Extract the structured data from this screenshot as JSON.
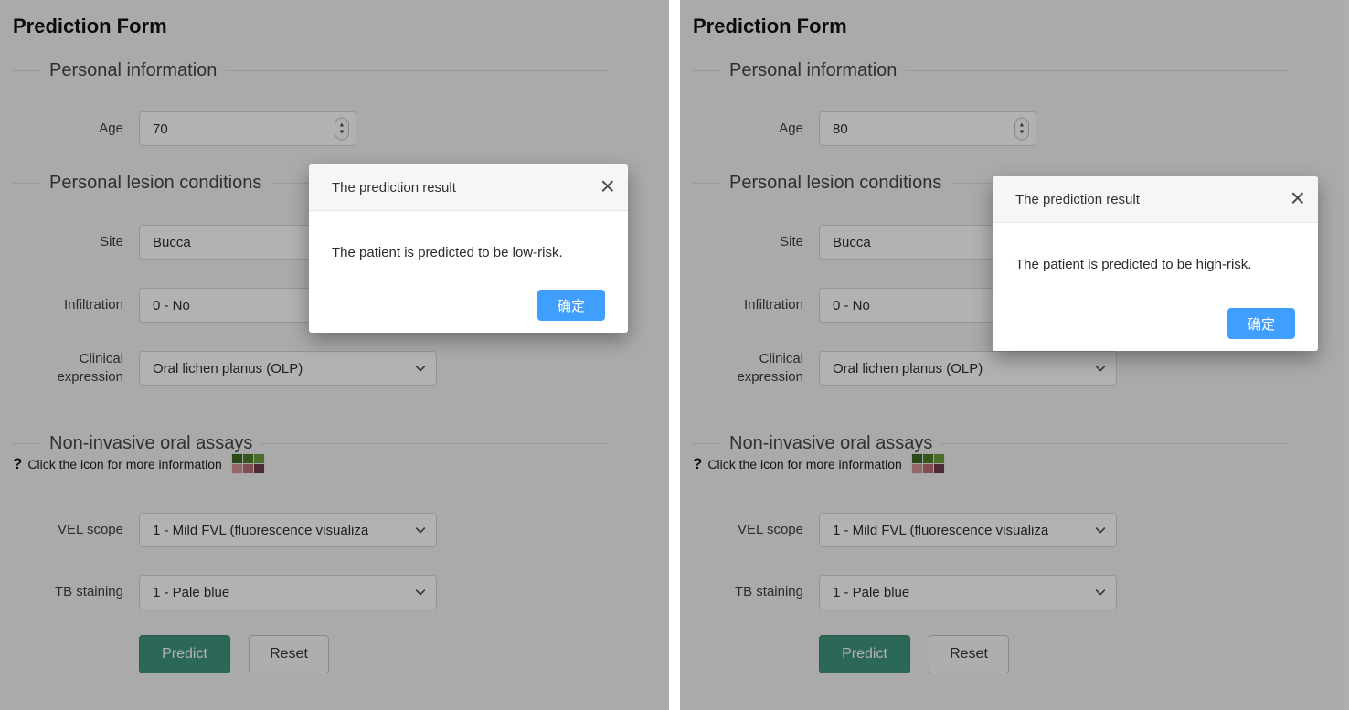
{
  "ui": {
    "overlay_color": "rgba(0,0,0,0.30)",
    "accent_blue": "#409EFF",
    "predict_button_color": "#40957F",
    "icons": {
      "stepper_up": "▲",
      "stepper_down": "▼",
      "close": "×"
    }
  },
  "panels": [
    {
      "title": "Prediction Form",
      "sections": {
        "personal_info": "Personal information",
        "lesion": "Personal lesion conditions",
        "assays": "Non-invasive oral assays"
      },
      "fields": {
        "age": {
          "label": "Age",
          "value": "70"
        },
        "site": {
          "label": "Site",
          "value": "Bucca"
        },
        "infiltration": {
          "label": "Infiltration",
          "value": "0 - No"
        },
        "clinical": {
          "label": "Clinical expression",
          "value": "Oral lichen planus (OLP)"
        },
        "velscope": {
          "label": "VEL scope",
          "value": "1 - Mild FVL (fluorescence visualiza"
        },
        "tb": {
          "label": "TB staining",
          "value": "1 - Pale blue"
        }
      },
      "assays_hint": {
        "question_mark": "?",
        "text": "Click the icon for more information"
      },
      "buttons": {
        "predict": "Predict",
        "reset": "Reset"
      },
      "modal": {
        "title": "The prediction result",
        "message": "The patient is predicted to be low-risk.",
        "confirm": "确定"
      }
    },
    {
      "title": "Prediction Form",
      "sections": {
        "personal_info": "Personal information",
        "lesion": "Personal lesion conditions",
        "assays": "Non-invasive oral assays"
      },
      "fields": {
        "age": {
          "label": "Age",
          "value": "80"
        },
        "site": {
          "label": "Site",
          "value": "Bucca"
        },
        "infiltration": {
          "label": "Infiltration",
          "value": "0 - No"
        },
        "clinical": {
          "label": "Clinical expression",
          "value": "Oral lichen planus (OLP)"
        },
        "velscope": {
          "label": "VEL scope",
          "value": "1 - Mild FVL (fluorescence visualiza"
        },
        "tb": {
          "label": "TB staining",
          "value": "1 - Pale blue"
        }
      },
      "assays_hint": {
        "question_mark": "?",
        "text": "Click the icon for more information"
      },
      "buttons": {
        "predict": "Predict",
        "reset": "Reset"
      },
      "modal": {
        "title": "The prediction result",
        "message": "The patient is predicted to be high-risk.",
        "confirm": "确定"
      }
    }
  ]
}
